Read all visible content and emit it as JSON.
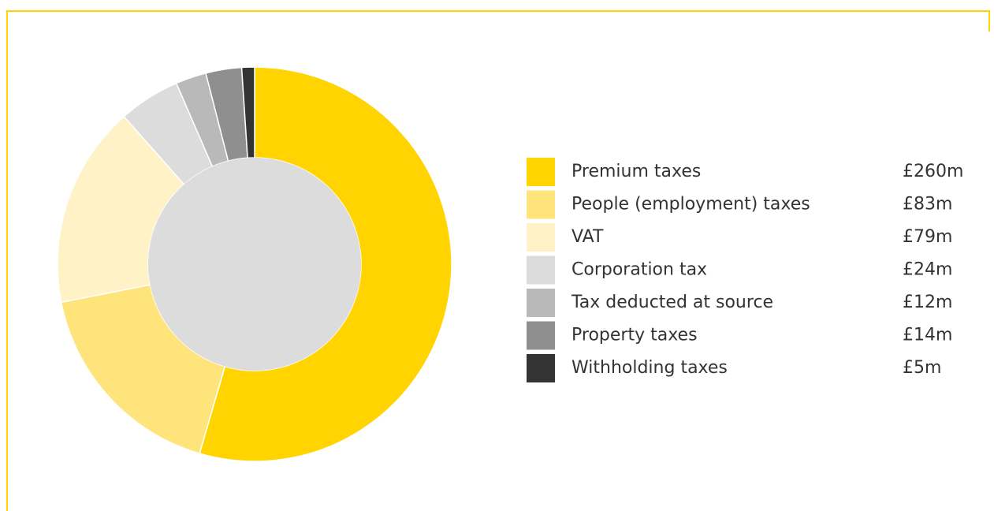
{
  "chart_data": {
    "type": "donut",
    "categories": [
      "Premium taxes",
      "People (employment) taxes",
      "VAT",
      "Corporation tax",
      "Tax deducted at source",
      "Property taxes",
      "Withholding taxes"
    ],
    "values": [
      260,
      83,
      79,
      24,
      12,
      14,
      5
    ],
    "value_labels": [
      "£260m",
      "£83m",
      "£79m",
      "£24m",
      "£12m",
      "£14m",
      "£5m"
    ],
    "colors": [
      "#ffd400",
      "#ffe47c",
      "#fff2c6",
      "#dcdcdc",
      "#b9b9b9",
      "#8f8f8f",
      "#333333"
    ]
  }
}
